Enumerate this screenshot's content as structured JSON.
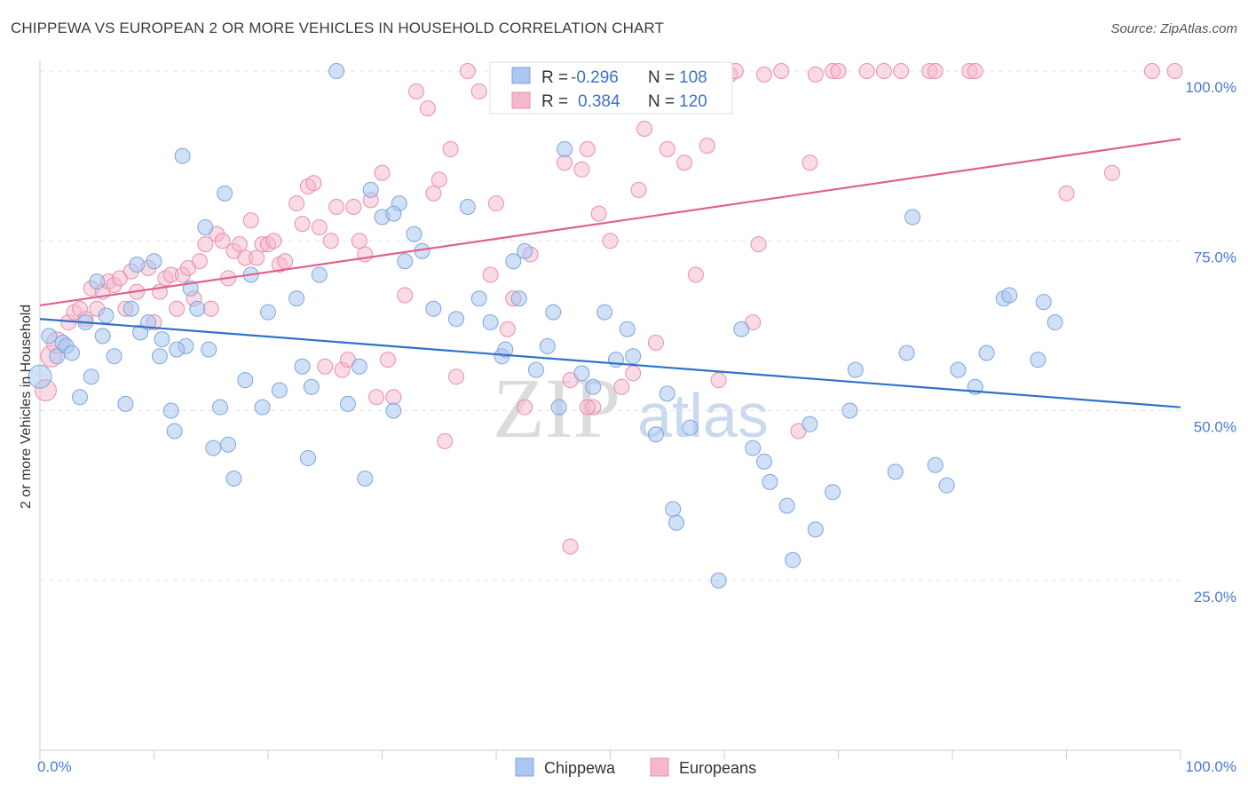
{
  "title": "CHIPPEWA VS EUROPEAN 2 OR MORE VEHICLES IN HOUSEHOLD CORRELATION CHART",
  "source": "Source: ZipAtlas.com",
  "watermark": {
    "zip": "ZIP",
    "atlas": "atlas"
  },
  "legend": {
    "r_label": "R =",
    "n_label": "N =",
    "rows": [
      {
        "r": "-0.296",
        "n": "108",
        "color": "#a9c7f0"
      },
      {
        "r": "0.384",
        "n": "120",
        "color": "#f5b8cb"
      }
    ]
  },
  "bottom_legend": [
    {
      "label": "Chippewa",
      "color": "#a9c7f0"
    },
    {
      "label": "Europeans",
      "color": "#f5b8cb"
    }
  ],
  "chart_data": {
    "type": "scatter",
    "title": "CHIPPEWA VS EUROPEAN 2 OR MORE VEHICLES IN HOUSEHOLD CORRELATION CHART",
    "xlabel": "",
    "ylabel": "2 or more Vehicles in Household",
    "x_tick_labels": [
      "0.0%",
      "100.0%"
    ],
    "y_tick_labels": [
      "25.0%",
      "50.0%",
      "75.0%",
      "100.0%"
    ],
    "xlim": [
      0,
      100
    ],
    "ylim": [
      0,
      102
    ],
    "grid": true,
    "colors": {
      "blue_fill": "#a9c7f0",
      "blue_stroke": "#7ea6e0",
      "blue_line": "#2f72c8",
      "pink_fill": "#f5b8cb",
      "pink_stroke": "#e98fab",
      "pink_line": "#e0628c",
      "tick_color": "#4a7bd0"
    },
    "series": [
      {
        "name": "Chippewa",
        "r": -0.296,
        "n": 108,
        "trend": {
          "x": [
            0,
            100
          ],
          "y": [
            63.5,
            50.5
          ]
        },
        "points": [
          [
            0.0,
            55.0
          ],
          [
            0.8,
            61.0
          ],
          [
            1.5,
            58.0
          ],
          [
            2.0,
            60.0
          ],
          [
            2.3,
            59.5
          ],
          [
            2.8,
            58.5
          ],
          [
            3.5,
            52.0
          ],
          [
            4.0,
            63.0
          ],
          [
            4.5,
            55.0
          ],
          [
            5.0,
            69.0
          ],
          [
            5.5,
            61.0
          ],
          [
            5.8,
            64.0
          ],
          [
            6.5,
            58.0
          ],
          [
            7.5,
            51.0
          ],
          [
            8.0,
            65.0
          ],
          [
            8.5,
            71.5
          ],
          [
            8.8,
            61.5
          ],
          [
            9.5,
            63.0
          ],
          [
            10.0,
            72.0
          ],
          [
            10.5,
            58.0
          ],
          [
            10.7,
            60.5
          ],
          [
            11.5,
            50.0
          ],
          [
            11.8,
            47.0
          ],
          [
            12.5,
            87.5
          ],
          [
            12.8,
            59.5
          ],
          [
            13.2,
            68.0
          ],
          [
            13.8,
            65.0
          ],
          [
            14.5,
            77.0
          ],
          [
            14.8,
            59.0
          ],
          [
            15.2,
            44.5
          ],
          [
            15.8,
            50.5
          ],
          [
            16.2,
            82.0
          ],
          [
            16.5,
            45.0
          ],
          [
            17.0,
            40.0
          ],
          [
            18.0,
            54.5
          ],
          [
            18.5,
            70.0
          ],
          [
            19.5,
            50.5
          ],
          [
            20.0,
            64.5
          ],
          [
            21.0,
            53.0
          ],
          [
            22.5,
            66.5
          ],
          [
            23.0,
            56.5
          ],
          [
            23.5,
            43.0
          ],
          [
            23.8,
            53.5
          ],
          [
            24.5,
            70.0
          ],
          [
            26.0,
            100.0
          ],
          [
            27.0,
            51.0
          ],
          [
            28.0,
            56.5
          ],
          [
            28.5,
            40.0
          ],
          [
            29.0,
            82.5
          ],
          [
            30.0,
            78.5
          ],
          [
            31.0,
            50.0
          ],
          [
            31.5,
            80.5
          ],
          [
            32.0,
            72.0
          ],
          [
            32.8,
            76.0
          ],
          [
            33.5,
            73.5
          ],
          [
            34.5,
            65.0
          ],
          [
            36.5,
            63.5
          ],
          [
            37.5,
            80.0
          ],
          [
            38.5,
            66.5
          ],
          [
            39.5,
            63.0
          ],
          [
            40.5,
            58.0
          ],
          [
            40.8,
            59.0
          ],
          [
            41.5,
            72.0
          ],
          [
            42.0,
            66.5
          ],
          [
            42.5,
            73.5
          ],
          [
            43.5,
            56.0
          ],
          [
            44.5,
            59.5
          ],
          [
            45.0,
            64.5
          ],
          [
            45.5,
            50.5
          ],
          [
            46.0,
            88.5
          ],
          [
            47.5,
            55.5
          ],
          [
            48.5,
            53.5
          ],
          [
            49.5,
            64.5
          ],
          [
            50.5,
            57.5
          ],
          [
            51.5,
            62.0
          ],
          [
            52.0,
            58.0
          ],
          [
            54.0,
            46.5
          ],
          [
            55.0,
            52.5
          ],
          [
            55.5,
            35.5
          ],
          [
            55.8,
            33.5
          ],
          [
            57.0,
            47.5
          ],
          [
            59.5,
            25.0
          ],
          [
            61.5,
            62.0
          ],
          [
            62.5,
            44.5
          ],
          [
            63.5,
            42.5
          ],
          [
            64.0,
            39.5
          ],
          [
            65.5,
            36.0
          ],
          [
            66.0,
            28.0
          ],
          [
            67.5,
            48.0
          ],
          [
            68.0,
            32.5
          ],
          [
            69.5,
            38.0
          ],
          [
            71.0,
            50.0
          ],
          [
            71.5,
            56.0
          ],
          [
            75.0,
            41.0
          ],
          [
            76.0,
            58.5
          ],
          [
            76.5,
            78.5
          ],
          [
            78.5,
            42.0
          ],
          [
            79.5,
            39.0
          ],
          [
            80.5,
            56.0
          ],
          [
            82.0,
            53.5
          ],
          [
            83.0,
            58.5
          ],
          [
            84.5,
            66.5
          ],
          [
            85.0,
            67.0
          ],
          [
            87.5,
            57.5
          ],
          [
            88.0,
            66.0
          ],
          [
            89.0,
            63.0
          ],
          [
            31.0,
            79.0
          ],
          [
            12.0,
            59.0
          ]
        ]
      },
      {
        "name": "Europeans",
        "r": 0.384,
        "n": 120,
        "trend": {
          "x": [
            0,
            100
          ],
          "y": [
            65.5,
            90.0
          ]
        },
        "points": [
          [
            0.5,
            53.0
          ],
          [
            1.0,
            58.0
          ],
          [
            1.5,
            60.0
          ],
          [
            2.5,
            63.0
          ],
          [
            3.0,
            64.5
          ],
          [
            3.5,
            65.0
          ],
          [
            4.0,
            63.5
          ],
          [
            4.5,
            68.0
          ],
          [
            5.0,
            65.0
          ],
          [
            5.5,
            67.5
          ],
          [
            6.0,
            69.0
          ],
          [
            6.5,
            68.5
          ],
          [
            7.0,
            69.5
          ],
          [
            7.5,
            65.0
          ],
          [
            8.0,
            70.5
          ],
          [
            8.5,
            67.5
          ],
          [
            9.5,
            71.0
          ],
          [
            10.0,
            63.0
          ],
          [
            10.5,
            67.5
          ],
          [
            11.0,
            69.5
          ],
          [
            11.5,
            70.0
          ],
          [
            12.0,
            65.0
          ],
          [
            12.5,
            70.0
          ],
          [
            13.0,
            71.0
          ],
          [
            13.5,
            66.5
          ],
          [
            14.0,
            72.0
          ],
          [
            14.5,
            74.5
          ],
          [
            15.0,
            65.0
          ],
          [
            15.5,
            76.0
          ],
          [
            16.0,
            75.0
          ],
          [
            16.5,
            69.5
          ],
          [
            17.0,
            73.5
          ],
          [
            17.5,
            74.5
          ],
          [
            18.0,
            72.5
          ],
          [
            18.5,
            78.0
          ],
          [
            19.0,
            72.5
          ],
          [
            19.5,
            74.5
          ],
          [
            20.0,
            74.5
          ],
          [
            20.5,
            75.0
          ],
          [
            21.0,
            71.5
          ],
          [
            21.5,
            72.0
          ],
          [
            22.5,
            80.5
          ],
          [
            23.0,
            77.5
          ],
          [
            23.5,
            83.0
          ],
          [
            24.0,
            83.5
          ],
          [
            24.5,
            77.0
          ],
          [
            25.0,
            56.5
          ],
          [
            25.5,
            75.0
          ],
          [
            26.0,
            80.0
          ],
          [
            26.5,
            56.0
          ],
          [
            27.0,
            57.5
          ],
          [
            27.5,
            80.0
          ],
          [
            28.0,
            75.0
          ],
          [
            28.5,
            73.0
          ],
          [
            29.0,
            81.0
          ],
          [
            29.5,
            52.0
          ],
          [
            30.0,
            85.0
          ],
          [
            30.5,
            57.5
          ],
          [
            31.0,
            52.0
          ],
          [
            32.0,
            67.0
          ],
          [
            33.0,
            97.0
          ],
          [
            34.0,
            94.5
          ],
          [
            34.5,
            82.0
          ],
          [
            35.0,
            84.0
          ],
          [
            35.5,
            45.5
          ],
          [
            36.0,
            88.5
          ],
          [
            36.5,
            55.0
          ],
          [
            37.5,
            100.0
          ],
          [
            38.5,
            97.0
          ],
          [
            39.5,
            70.0
          ],
          [
            40.0,
            80.5
          ],
          [
            41.0,
            62.0
          ],
          [
            41.5,
            66.5
          ],
          [
            42.5,
            50.5
          ],
          [
            43.0,
            73.0
          ],
          [
            44.0,
            100.0
          ],
          [
            45.0,
            97.5
          ],
          [
            45.5,
            98.5
          ],
          [
            46.0,
            86.5
          ],
          [
            46.5,
            54.5
          ],
          [
            47.5,
            85.5
          ],
          [
            48.0,
            88.5
          ],
          [
            48.5,
            50.5
          ],
          [
            49.0,
            79.0
          ],
          [
            50.0,
            75.0
          ],
          [
            51.0,
            53.5
          ],
          [
            52.0,
            55.5
          ],
          [
            53.0,
            91.5
          ],
          [
            54.0,
            60.0
          ],
          [
            55.0,
            88.5
          ],
          [
            55.5,
            96.5
          ],
          [
            56.5,
            86.5
          ],
          [
            57.5,
            70.0
          ],
          [
            58.5,
            89.0
          ],
          [
            59.5,
            54.5
          ],
          [
            60.5,
            99.5
          ],
          [
            61.0,
            100.0
          ],
          [
            62.5,
            63.0
          ],
          [
            63.0,
            74.5
          ],
          [
            63.5,
            99.5
          ],
          [
            65.0,
            100.0
          ],
          [
            66.5,
            47.0
          ],
          [
            67.5,
            86.5
          ],
          [
            68.0,
            99.5
          ],
          [
            69.5,
            100.0
          ],
          [
            70.0,
            100.0
          ],
          [
            72.5,
            100.0
          ],
          [
            74.0,
            100.0
          ],
          [
            75.5,
            100.0
          ],
          [
            78.0,
            100.0
          ],
          [
            78.5,
            100.0
          ],
          [
            81.5,
            100.0
          ],
          [
            82.0,
            100.0
          ],
          [
            90.0,
            82.0
          ],
          [
            94.0,
            85.0
          ],
          [
            97.5,
            100.0
          ],
          [
            99.5,
            100.0
          ],
          [
            46.5,
            30.0
          ],
          [
            48.0,
            50.5
          ],
          [
            52.5,
            82.5
          ]
        ]
      }
    ]
  }
}
